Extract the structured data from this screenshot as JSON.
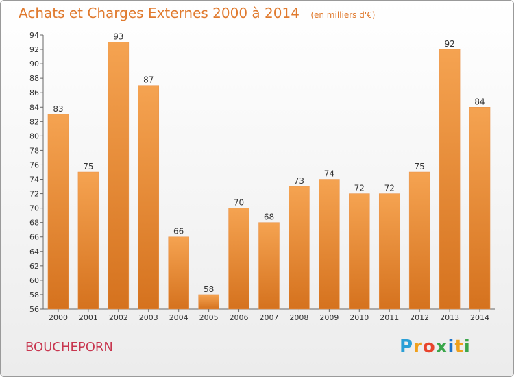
{
  "chart_data": {
    "type": "bar",
    "title": "Achats et Charges Externes 2000 à 2014",
    "unit": "(en milliers d'€)",
    "categories": [
      "2000",
      "2001",
      "2002",
      "2003",
      "2004",
      "2005",
      "2006",
      "2007",
      "2008",
      "2009",
      "2010",
      "2011",
      "2012",
      "2013",
      "2014"
    ],
    "values": [
      83,
      75,
      93,
      87,
      66,
      58,
      70,
      68,
      73,
      74,
      72,
      72,
      75,
      92,
      84
    ],
    "ylim": [
      56,
      94
    ],
    "ytick_step": 2,
    "grid": false,
    "bar_color_top": "#f5a351",
    "bar_color_bottom": "#d5721e"
  },
  "town": "BOUCHEPORN",
  "logo": {
    "letters": [
      "P",
      "r",
      "o",
      "x",
      "i",
      "t",
      "i"
    ],
    "colors": [
      "#2a9fd6",
      "#f0a01c",
      "#e8442c",
      "#3aa64a",
      "#1e73c8",
      "#f0a01c",
      "#3aa64a"
    ]
  }
}
